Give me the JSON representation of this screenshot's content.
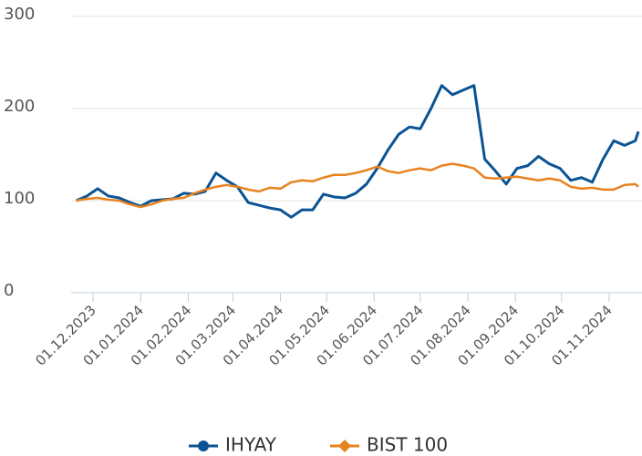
{
  "chart_data": {
    "type": "line",
    "x": [
      "20.11.2023",
      "27.11.2023",
      "04.12.2023",
      "11.12.2023",
      "18.12.2023",
      "25.12.2023",
      "01.01.2024",
      "08.01.2024",
      "15.01.2024",
      "22.01.2024",
      "29.01.2024",
      "05.02.2024",
      "12.02.2024",
      "19.02.2024",
      "26.02.2024",
      "04.03.2024",
      "11.03.2024",
      "18.03.2024",
      "25.03.2024",
      "01.04.2024",
      "08.04.2024",
      "15.04.2024",
      "22.04.2024",
      "29.04.2024",
      "06.05.2024",
      "13.05.2024",
      "20.05.2024",
      "27.05.2024",
      "03.06.2024",
      "10.06.2024",
      "17.06.2024",
      "24.06.2024",
      "01.07.2024",
      "08.07.2024",
      "15.07.2024",
      "22.07.2024",
      "29.07.2024",
      "05.08.2024",
      "12.08.2024",
      "19.08.2024",
      "26.08.2024",
      "02.09.2024",
      "09.09.2024",
      "16.09.2024",
      "23.09.2024",
      "30.09.2024",
      "07.10.2024",
      "14.10.2024",
      "21.10.2024",
      "28.10.2024",
      "04.11.2024",
      "11.11.2024",
      "18.11.2024",
      "20.11.2024"
    ],
    "series": [
      {
        "name": "IHYAY",
        "color": "#0b5394",
        "marker": "circle",
        "values": [
          100,
          105,
          113,
          105,
          103,
          98,
          94,
          100,
          101,
          102,
          108,
          107,
          110,
          130,
          122,
          115,
          98,
          95,
          92,
          90,
          82,
          90,
          90,
          107,
          104,
          103,
          108,
          118,
          135,
          155,
          172,
          180,
          178,
          200,
          225,
          215,
          220,
          225,
          145,
          132,
          118,
          135,
          138,
          148,
          140,
          135,
          122,
          125,
          120,
          145,
          165,
          160,
          165,
          175
        ]
      },
      {
        "name": "BIST 100",
        "color": "#e8821e",
        "marker": "diamond",
        "values": [
          100,
          102,
          103,
          101,
          100,
          96,
          93,
          96,
          100,
          102,
          103,
          108,
          112,
          115,
          117,
          115,
          112,
          110,
          114,
          113,
          120,
          122,
          121,
          125,
          128,
          128,
          130,
          133,
          137,
          132,
          130,
          133,
          135,
          133,
          138,
          140,
          138,
          135,
          125,
          124,
          125,
          126,
          124,
          122,
          124,
          122,
          115,
          113,
          114,
          112,
          112,
          117,
          118,
          115
        ]
      }
    ],
    "xlim": [
      "20.11.2023",
      "21.11.2024"
    ],
    "xticks": [
      "01.12.2023",
      "01.01.2024",
      "01.02.2024",
      "01.03.2024",
      "01.04.2024",
      "01.05.2024",
      "01.06.2024",
      "01.07.2024",
      "01.08.2024",
      "01.09.2024",
      "01.10.2024",
      "01.11.2024"
    ],
    "ylim": [
      0,
      300
    ],
    "yticks": [
      0,
      100,
      200,
      300
    ],
    "grid": true,
    "legend": "bottom"
  }
}
